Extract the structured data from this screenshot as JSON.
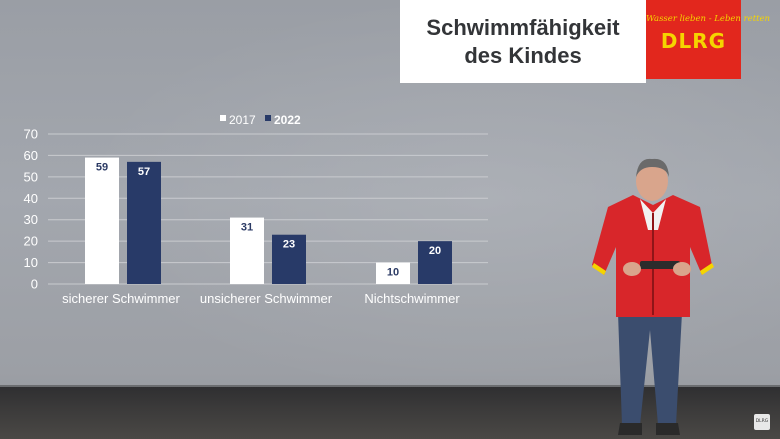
{
  "title_card": {
    "line1": "Schwimmfähigkeit",
    "line2": "des Kindes"
  },
  "logo": {
    "slogan": "Wasser lieben - Leben retten",
    "name": "DLRG",
    "red": "#e2271d",
    "yellow": "#f5d400"
  },
  "corner_logo": "DLRG",
  "chart_data": {
    "type": "bar",
    "categories": [
      "sicherer Schwimmer",
      "unsicherer Schwimmer",
      "Nichtschwimmer"
    ],
    "series": [
      {
        "name": "2017",
        "values": [
          59,
          31,
          10
        ],
        "color": "#ffffff",
        "label_color": "#2b3a64"
      },
      {
        "name": "2022",
        "values": [
          57,
          23,
          20
        ],
        "color": "#283a68",
        "label_color": "#ffffff"
      }
    ],
    "ylim": [
      0,
      70
    ],
    "yticks": [
      0,
      10,
      20,
      30,
      40,
      50,
      60,
      70
    ],
    "grid": true,
    "legend_position": "top"
  }
}
